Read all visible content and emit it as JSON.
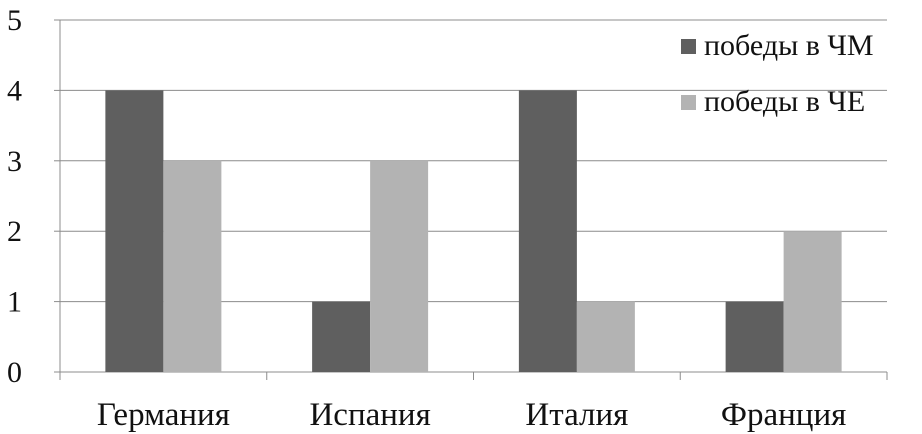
{
  "chart_data": {
    "type": "bar",
    "title": "",
    "xlabel": "",
    "ylabel": "",
    "categories": [
      "Германия",
      "Испания",
      "Италия",
      "Франция"
    ],
    "series": [
      {
        "name": "победы в ЧМ",
        "values": [
          4,
          1,
          4,
          1
        ],
        "color": "#5f5f5f"
      },
      {
        "name": "победы в ЧЕ",
        "values": [
          3,
          3,
          1,
          2
        ],
        "color": "#b3b3b3"
      }
    ],
    "ylim": [
      0,
      5
    ],
    "yticks": [
      0,
      1,
      2,
      3,
      4,
      5
    ],
    "grid": true,
    "legend_position": "top-right"
  }
}
